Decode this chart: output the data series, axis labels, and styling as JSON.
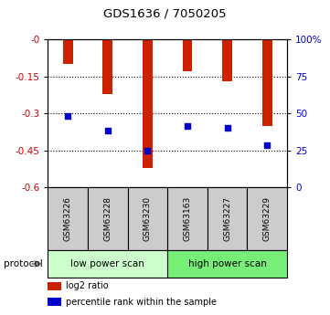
{
  "title": "GDS1636 / 7050205",
  "categories": [
    "GSM63226",
    "GSM63228",
    "GSM63230",
    "GSM63163",
    "GSM63227",
    "GSM63229"
  ],
  "log2_ratio": [
    -0.1,
    -0.22,
    -0.52,
    -0.13,
    -0.17,
    -0.35
  ],
  "percentile_rank_val": [
    -0.31,
    -0.37,
    -0.45,
    -0.35,
    -0.36,
    -0.43
  ],
  "ylim": [
    -0.6,
    0.0
  ],
  "yticks_left": [
    0.0,
    -0.15,
    -0.3,
    -0.45,
    -0.6
  ],
  "ytick_labels_left": [
    "-0",
    "-0.15",
    "-0.3",
    "-0.45",
    "-0.6"
  ],
  "yticks_right": [
    0,
    25,
    50,
    75,
    100
  ],
  "ytick_labels_right": [
    "0",
    "25",
    "50",
    "75",
    "100%"
  ],
  "bar_color": "#cc2200",
  "dot_color": "#0000cc",
  "protocol_groups": [
    {
      "label": "low power scan",
      "indices": [
        0,
        1,
        2
      ],
      "color": "#ccffcc"
    },
    {
      "label": "high power scan",
      "indices": [
        3,
        4,
        5
      ],
      "color": "#77ee77"
    }
  ],
  "protocol_label": "protocol",
  "legend_items": [
    {
      "label": "log2 ratio",
      "color": "#cc2200"
    },
    {
      "label": "percentile rank within the sample",
      "color": "#0000cc"
    }
  ],
  "tick_color_left": "#cc0000",
  "tick_color_right": "#0000cc",
  "bar_width": 0.25,
  "xlabel_area_color": "#cccccc",
  "background_color": "#ffffff"
}
